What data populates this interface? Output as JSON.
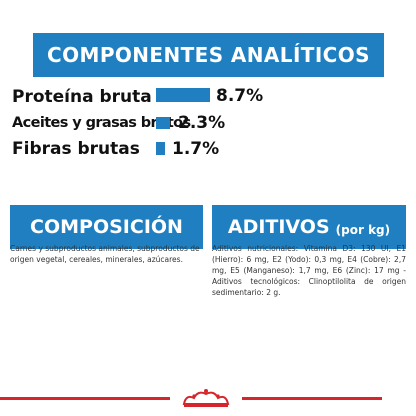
{
  "analytics": {
    "title": "COMPONENTES ANALÍTICOS",
    "rows": [
      {
        "label": "Proteína bruta",
        "value": "8.7%"
      },
      {
        "label": "Aceites y grasas brutos",
        "value": "2.3%"
      },
      {
        "label": "Fibras brutas",
        "value": "1.7%"
      }
    ]
  },
  "composition": {
    "title": "COMPOSICIÓN",
    "text": "Carnes y subproductos animales, subproductos de origen vegetal, cereales, minerales, azúcares."
  },
  "additives": {
    "title": "ADITIVOS",
    "subtitle": "(por kg)",
    "text": "Aditivos nutricionales: Vitamina D3: 130 UI, E1 (Hierro): 6 mg, E2 (Yodo): 0,3 mg, E4 (Cobre): 2,7 mg, E5 (Manganeso): 1,7 mg, E6 (Zinc): 17 mg - Aditivos tecnológicos: Clinoptilolita de origen sedimentario: 2 g."
  },
  "colors": {
    "accent": "#1f7fc0",
    "brand_red": "#d7262b"
  }
}
